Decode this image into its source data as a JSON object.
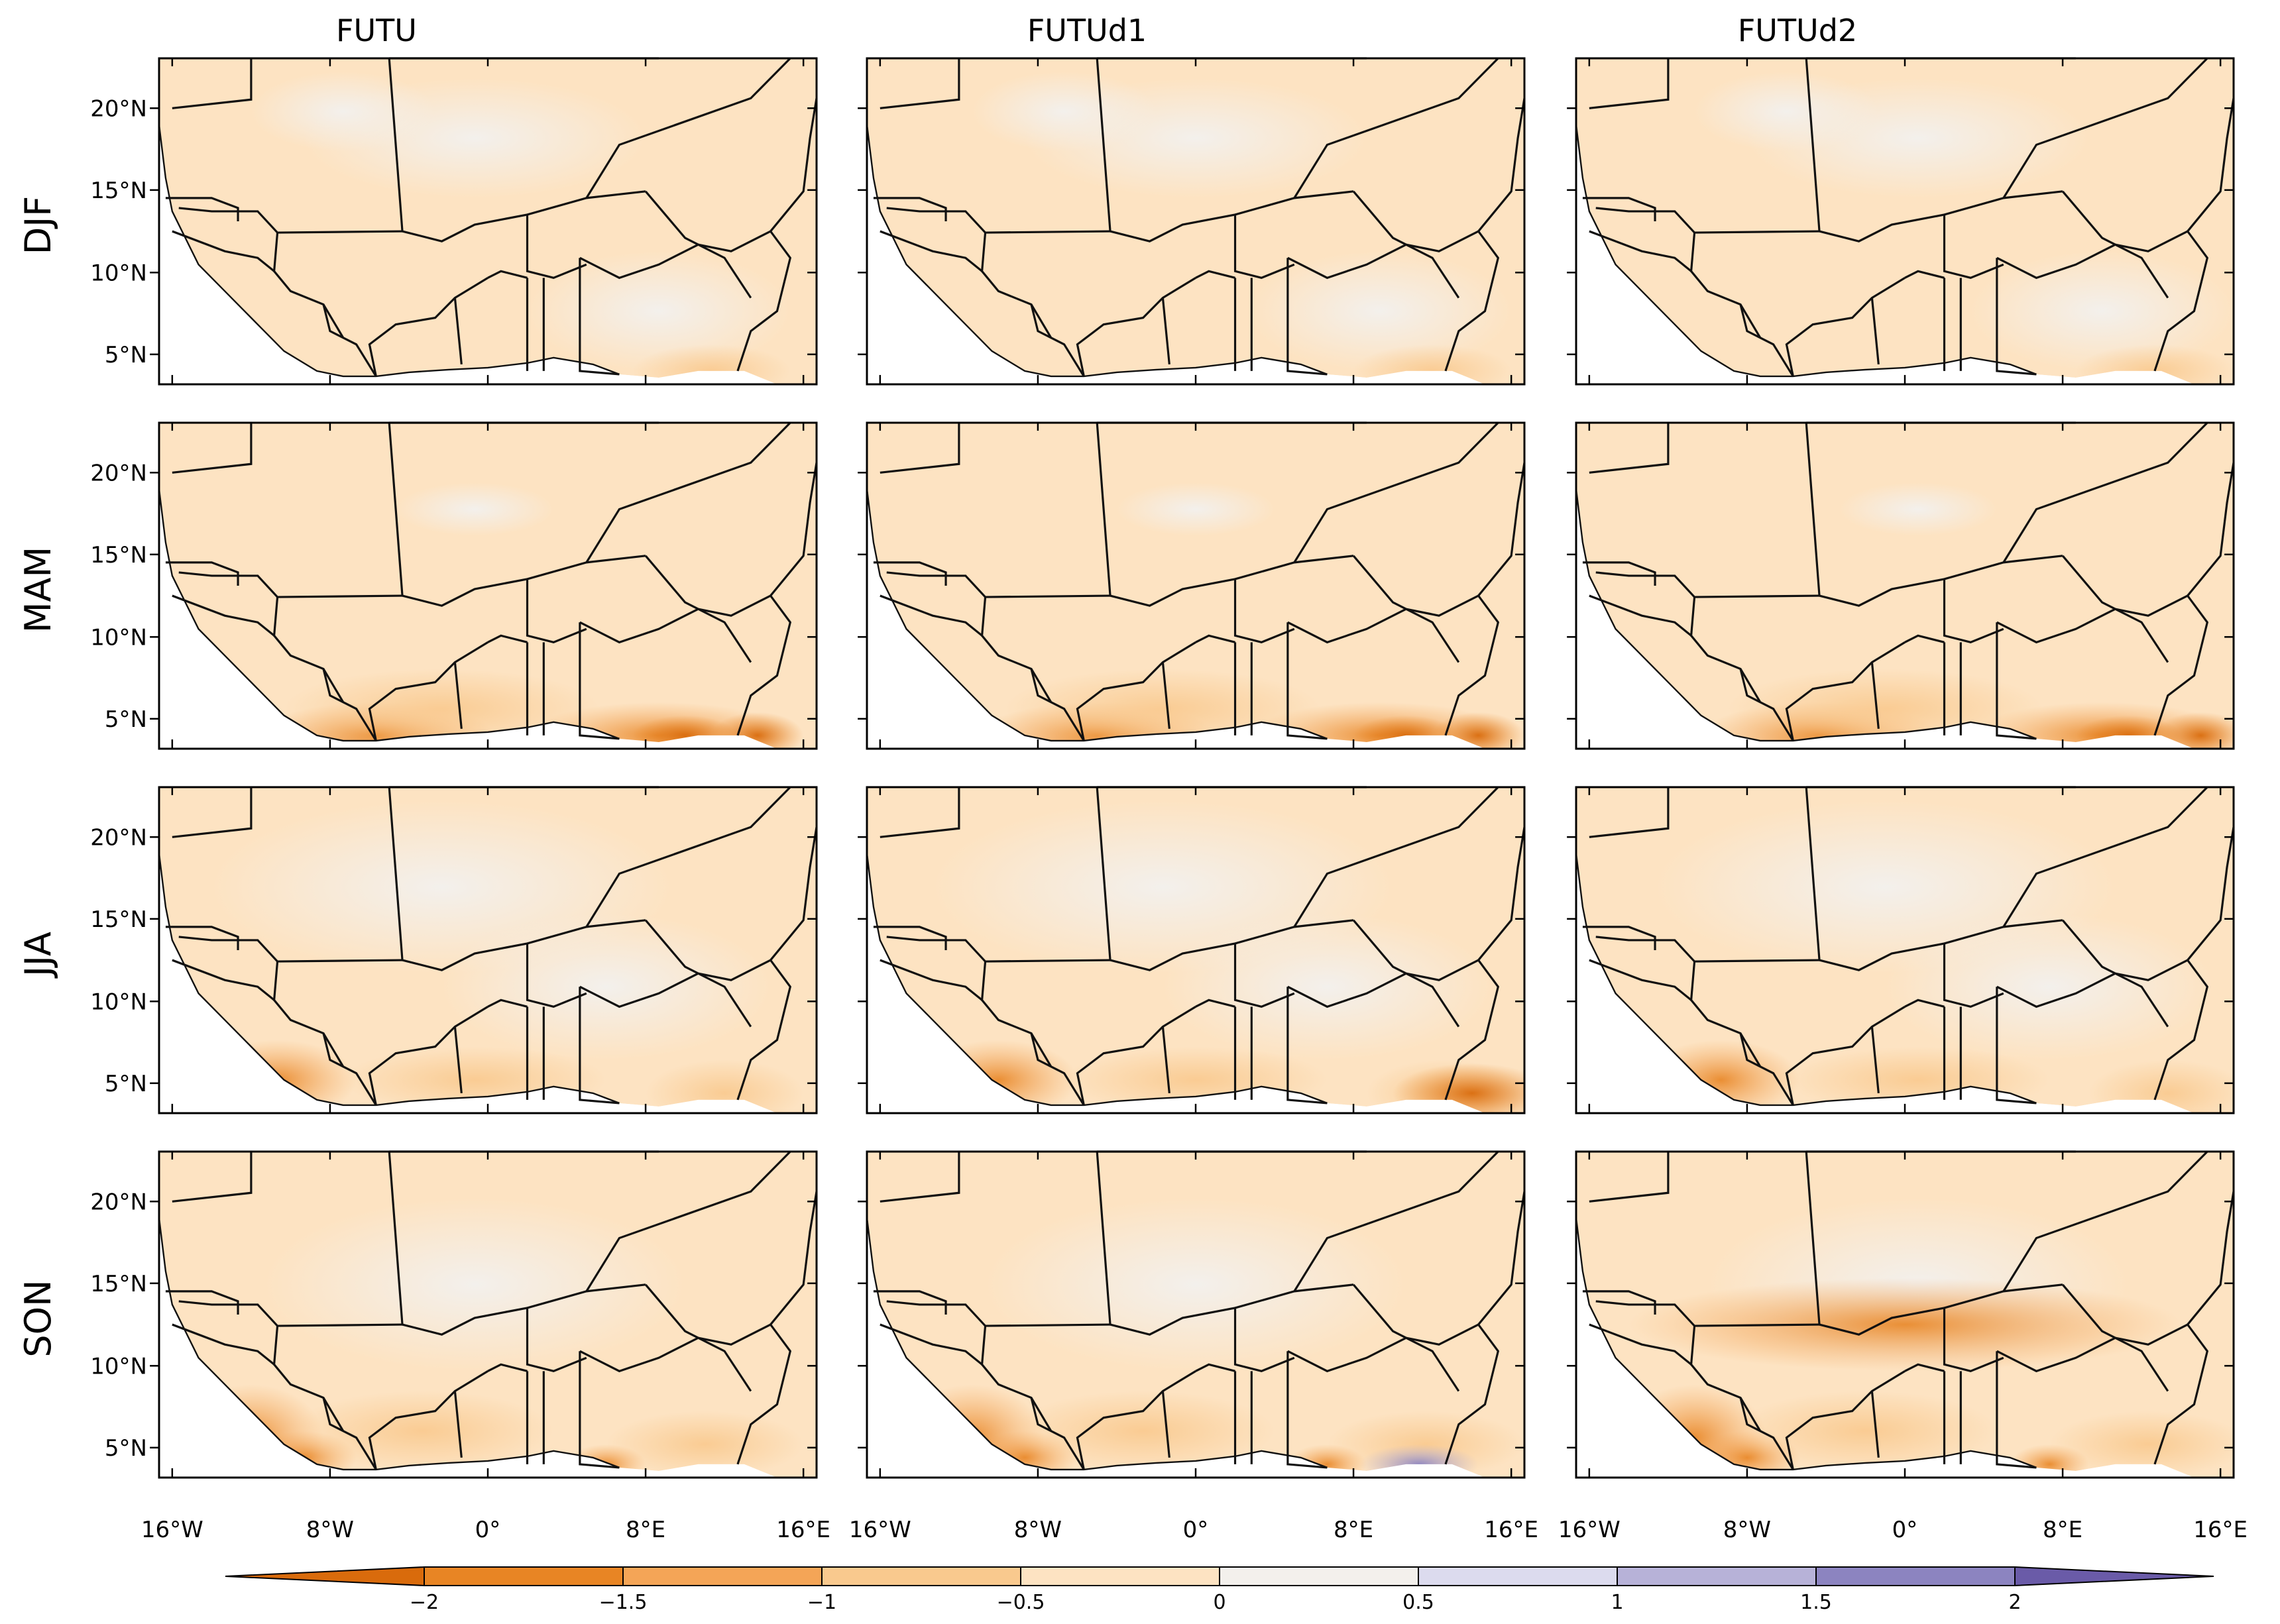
{
  "figure": {
    "columns": [
      "FUTU",
      "FUTUd1",
      "FUTUd2"
    ],
    "rows": [
      "DJF",
      "MAM",
      "JJA",
      "SON"
    ],
    "lat_ticks": [
      "20°N",
      "15°N",
      "10°N",
      "5°N"
    ],
    "lon_ticks": [
      "16°W",
      "8°W",
      "0°",
      "8°E",
      "16°E"
    ]
  },
  "colorbar": {
    "labels": [
      "−2",
      "−1.5",
      "−1",
      "−0.5",
      "0",
      "0.5",
      "1",
      "1.5",
      "2"
    ],
    "colors": [
      "#d96b0c",
      "#e88524",
      "#f4a557",
      "#f9c98e",
      "#fde3c2",
      "#f3f0ec",
      "#dcdbee",
      "#b7b2d8",
      "#8c84c0",
      "#6a5ba8"
    ]
  },
  "colors": {
    "land_base": "#fde3c2",
    "near_zero": "#f3f0ec",
    "ocean": "#ffffff",
    "border": "#111111"
  }
}
